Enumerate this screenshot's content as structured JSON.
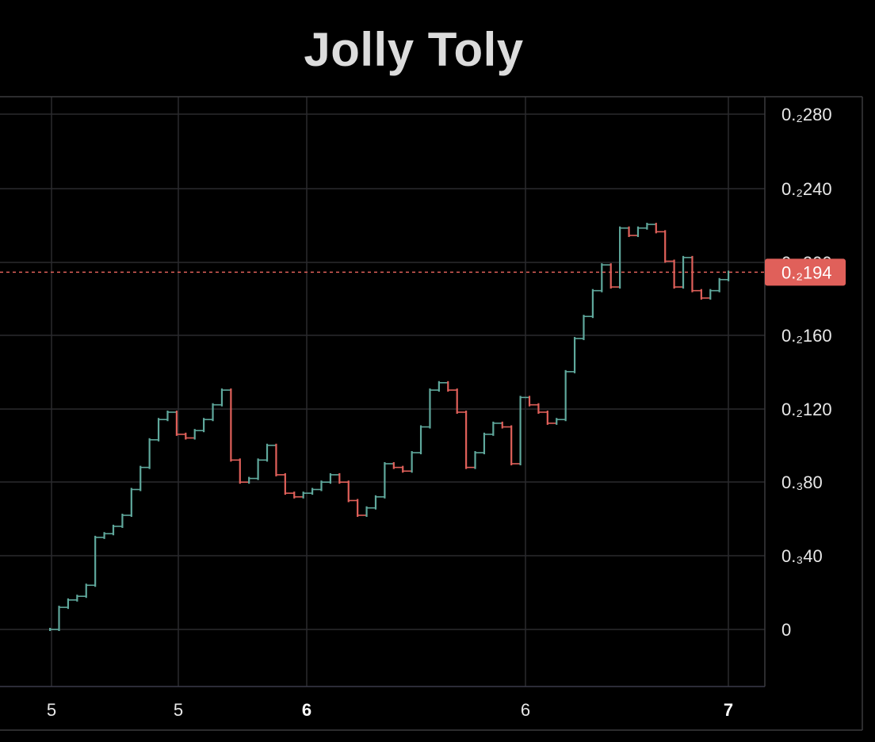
{
  "title": "Jolly Toly",
  "colors": {
    "background": "#000000",
    "grid": "#2a2a2e",
    "up": "#5fa89c",
    "down": "#e0605a",
    "price_line": "#e0605a",
    "price_tag": "#e0605a"
  },
  "chart_data": {
    "type": "line",
    "title": "Jolly Toly",
    "xlabel": "",
    "ylabel": "",
    "y_tick_labels": [
      "0.₂280",
      "0.₂240",
      "0.₂200",
      "0.₂160",
      "0.₂120",
      "0.₃80",
      "0.₃40",
      "0"
    ],
    "x_tick_labels": [
      {
        "label": "5",
        "bold": false
      },
      {
        "label": "5",
        "bold": false
      },
      {
        "label": "6",
        "bold": true
      },
      {
        "label": "6",
        "bold": false
      },
      {
        "label": "7",
        "bold": true
      }
    ],
    "current_price_label": "0.₂194",
    "current_price": 0.00194,
    "ylim": [
      -0.0003,
      0.0029
    ],
    "grid": true,
    "series": [
      {
        "values": [
          0.0,
          0.00012,
          0.00016,
          0.00018,
          0.00024,
          0.0005,
          0.00052,
          0.00056,
          0.00062,
          0.00076,
          0.00088,
          0.00103,
          0.00114,
          0.00118,
          0.00106,
          0.00104,
          0.00108,
          0.00114,
          0.00122,
          0.0013,
          0.00092,
          0.0008,
          0.00082,
          0.00092,
          0.001,
          0.00084,
          0.00074,
          0.00072,
          0.00074,
          0.00076,
          0.0008,
          0.00084,
          0.0008,
          0.0007,
          0.00062,
          0.00066,
          0.00072,
          0.0009,
          0.00088,
          0.00086,
          0.00096,
          0.0011,
          0.0013,
          0.00134,
          0.0013,
          0.00118,
          0.00088,
          0.00096,
          0.00106,
          0.00112,
          0.0011,
          0.0009,
          0.00126,
          0.00122,
          0.00118,
          0.00112,
          0.00114,
          0.0014,
          0.00158,
          0.0017,
          0.00184,
          0.00198,
          0.00186,
          0.00218,
          0.00214,
          0.00218,
          0.0022,
          0.00216,
          0.002,
          0.00186,
          0.00202,
          0.00184,
          0.0018,
          0.00184,
          0.0019,
          0.00194
        ]
      }
    ]
  }
}
